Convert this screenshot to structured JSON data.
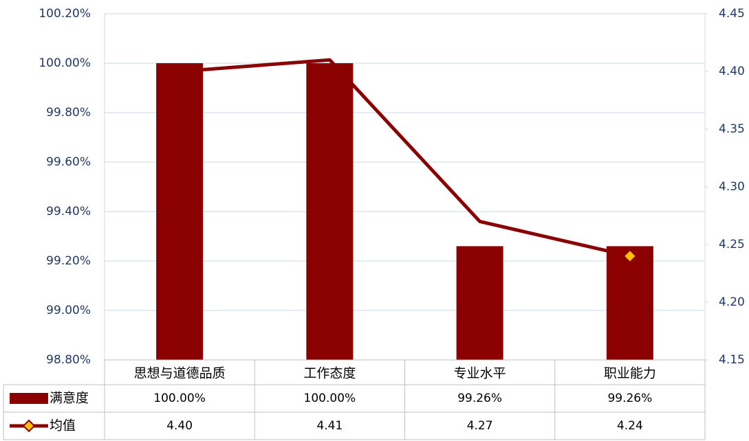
{
  "chart_data": {
    "type": "bar",
    "categories": [
      "思想与道德品质",
      "工作态度",
      "专业水平",
      "职业能力"
    ],
    "series": [
      {
        "name": "满意度",
        "type": "bar",
        "color": "#8B0000",
        "values": [
          100,
          100,
          99.26,
          99.26
        ],
        "value_labels": [
          "100.00%",
          "100.00%",
          "99.26%",
          "99.26%"
        ]
      },
      {
        "name": "均值",
        "type": "line",
        "axis": "y2",
        "color": "#8B0000",
        "marker_color": "#FFC000",
        "values": [
          4.4,
          4.41,
          4.27,
          4.24
        ],
        "value_labels": [
          "4.40",
          "4.41",
          "4.27",
          "4.24"
        ]
      }
    ],
    "ylim": [
      98.8,
      100.2
    ],
    "yticks": [
      {
        "value": 98.8,
        "label": "98.80%"
      },
      {
        "value": 99.0,
        "label": "99.00%"
      },
      {
        "value": 99.2,
        "label": "99.20%"
      },
      {
        "value": 99.4,
        "label": "99.40%"
      },
      {
        "value": 99.6,
        "label": "99.60%"
      },
      {
        "value": 99.8,
        "label": "99.80%"
      },
      {
        "value": 100.0,
        "label": "100.00%"
      },
      {
        "value": 100.2,
        "label": "100.20%"
      }
    ],
    "y2lim": [
      4.15,
      4.45
    ],
    "y2ticks": [
      4.15,
      {
        "value": 4.2,
        "label": "4.20"
      },
      4.25,
      {
        "value": 4.3,
        "label": "4.30"
      },
      4.35,
      {
        "value": 4.4,
        "label": "4.40"
      },
      4.45
    ],
    "grid": true,
    "data_table": true
  }
}
